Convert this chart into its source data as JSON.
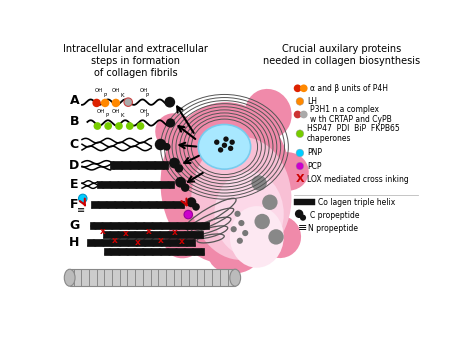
{
  "title_left": "Intracellular and extracellular\nsteps in formation\nof collagen fibrils",
  "title_right": "Crucial auxilary proteins\nneeded in collagen biosynthesis",
  "bg_color": "#ffffff",
  "cell_pink_outer": "#f5a0c0",
  "cell_pink_inner": "#f8c8d8",
  "cell_pink_lightest": "#fce8f0",
  "nucleus_color": "#88ddff",
  "nucleus_edge": "#66bbee",
  "er_color": "#666666",
  "golgi_color": "#777777",
  "vesicle_color": "#888888",
  "steps": [
    "A",
    "B",
    "C",
    "D",
    "E",
    "F",
    "G",
    "H"
  ],
  "step_y": [
    78,
    105,
    135,
    162,
    187,
    213,
    240,
    262
  ],
  "arrow_color": "#111111",
  "hatch_color": "#111111",
  "legend_entries": [
    {
      "type": "two_circles",
      "c1": "#dd2200",
      "c2": "#ff8800",
      "label": "α and β units of P4H"
    },
    {
      "type": "circle",
      "c1": "#ff8800",
      "label": "LH"
    },
    {
      "type": "two_circles",
      "c1": "#cc3333",
      "c2": "#aaaaaa",
      "label": "P3H1 n a complex\nw th CRTAP and CyPB"
    },
    {
      "type": "circle",
      "c1": "#77cc00",
      "label": "HSP47  PDI  BiP  FKPB65\nchaperones"
    },
    {
      "type": "circle",
      "c1": "#00ccff",
      "label": "PNP"
    },
    {
      "type": "circle",
      "c1": "#cc00cc",
      "label": "PCP"
    },
    {
      "type": "x",
      "c1": "#cc0000",
      "label": "LOX mediated cross inking"
    }
  ]
}
